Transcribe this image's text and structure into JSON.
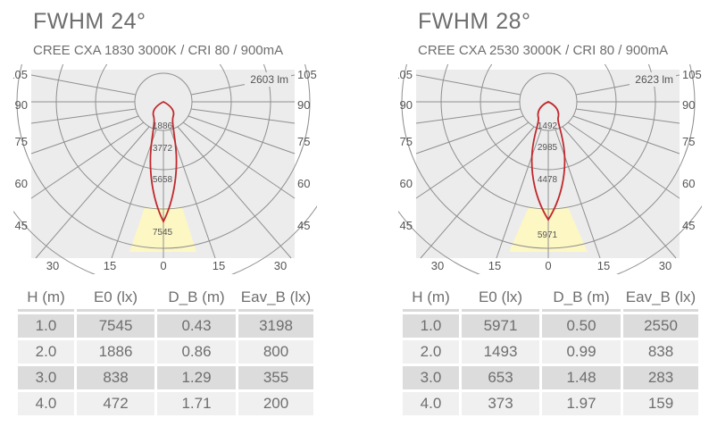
{
  "panels": [
    {
      "title": "FWHM  24°",
      "subtitle": "CREE CXA 1830 3000K / CRI 80 / 900mA",
      "lumen_label": "2603 lm",
      "left_angle_labels": [
        "105",
        "90",
        "75",
        "60",
        "45"
      ],
      "right_angle_labels": [
        "105",
        "90",
        "75",
        "60",
        "45"
      ],
      "bottom_labels": [
        "30",
        "15",
        "0",
        "15",
        "30"
      ],
      "ring_labels": [
        "1886",
        "3772",
        "5658",
        "7545"
      ],
      "table": {
        "headers": [
          "H (m)",
          "E0 (lx)",
          "D_B (m)",
          "Eav_B (lx)"
        ],
        "rows": [
          [
            "1.0",
            "7545",
            "0.43",
            "3198"
          ],
          [
            "2.0",
            "1886",
            "0.86",
            "800"
          ],
          [
            "3.0",
            "838",
            "1.29",
            "355"
          ],
          [
            "4.0",
            "472",
            "1.71",
            "200"
          ]
        ]
      }
    },
    {
      "title": "FWHM  28°",
      "subtitle": "CREE CXA 2530 3000K / CRI 80 / 900mA",
      "lumen_label": "2623 lm",
      "left_angle_labels": [
        "105",
        "90",
        "75",
        "60",
        "45"
      ],
      "right_angle_labels": [
        "105",
        "90",
        "75",
        "60",
        "45"
      ],
      "bottom_labels": [
        "30",
        "15",
        "0",
        "15",
        "30"
      ],
      "ring_labels": [
        "1492",
        "2985",
        "4478",
        "5971"
      ],
      "table": {
        "headers": [
          "H (m)",
          "E0 (lx)",
          "D_B (m)",
          "Eav_B (lx)"
        ],
        "rows": [
          [
            "1.0",
            "5971",
            "0.50",
            "2550"
          ],
          [
            "2.0",
            "1493",
            "0.99",
            "838"
          ],
          [
            "3.0",
            "653",
            "1.48",
            "283"
          ],
          [
            "4.0",
            "373",
            "1.97",
            "159"
          ]
        ]
      }
    }
  ],
  "colors": {
    "plot_background": "#ececec",
    "grid": "#8f8f8f",
    "curve": "#c0282d",
    "beam_cone": "#fdf7c4",
    "header_underline": "#d9d9d9",
    "row_dark": "#dcdcdc",
    "row_light": "#f0f0f0"
  }
}
